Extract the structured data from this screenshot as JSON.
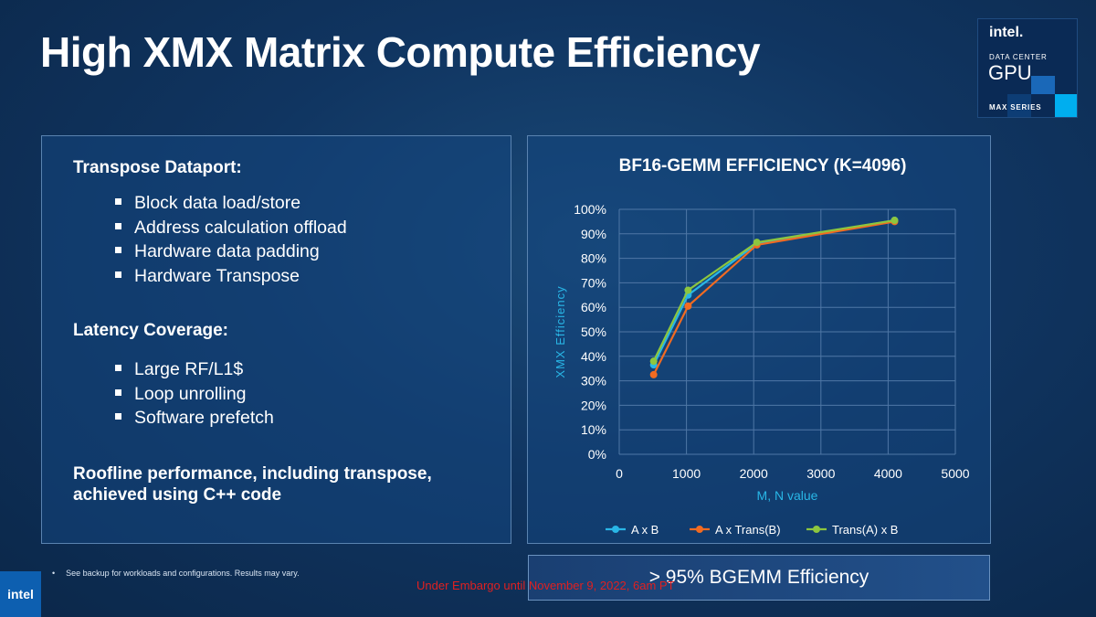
{
  "slide": {
    "title": "High XMX Matrix Compute Efficiency"
  },
  "brand": {
    "logo": "intel.",
    "subtitle": "DATA CENTER",
    "product": "GPU",
    "series": "MAX SERIES"
  },
  "left_panel": {
    "sections": [
      {
        "heading": "Transpose Dataport:",
        "items": [
          "Block data load/store",
          "Address calculation offload",
          "Hardware data padding",
          "Hardware Transpose"
        ]
      },
      {
        "heading": "Latency Coverage:",
        "items": [
          "Large RF/L1$",
          "Loop unrolling",
          "Software prefetch"
        ]
      }
    ],
    "summary": "Roofline performance, including transpose, achieved using C++ code"
  },
  "chart_data": {
    "type": "line",
    "title": "BF16-GEMM EFFICIENCY (K=4096)",
    "xlabel": "M, N value",
    "ylabel": "XMX Efficiency",
    "xlim": [
      0,
      5000
    ],
    "ylim": [
      0,
      1
    ],
    "x_ticks": [
      "0",
      "1000",
      "2000",
      "3000",
      "4000",
      "5000"
    ],
    "y_ticks": [
      "0%",
      "10%",
      "20%",
      "30%",
      "40%",
      "50%",
      "60%",
      "70%",
      "80%",
      "90%",
      "100%"
    ],
    "grid": true,
    "legend_position": "bottom",
    "x": [
      512,
      1024,
      2048,
      4096
    ],
    "series": [
      {
        "name": "A x B",
        "color": "#29b6e6",
        "values": [
          0.365,
          0.65,
          0.86,
          0.955
        ]
      },
      {
        "name": "A x Trans(B)",
        "color": "#f26b21",
        "values": [
          0.325,
          0.605,
          0.855,
          0.95
        ]
      },
      {
        "name": "Trans(A) x B",
        "color": "#8dc63f",
        "values": [
          0.38,
          0.67,
          0.865,
          0.955
        ]
      }
    ]
  },
  "callout": {
    "text": "> 95% BGEMM Efficiency"
  },
  "footer": {
    "footnote": "See backup for workloads and configurations. Results may vary.",
    "embargo": "Under Embargo until November 9, 2022, 6am PT",
    "corner_logo": "intel"
  },
  "colors": {
    "background": "#103561",
    "panel_border": "#5a83b0",
    "axis_label": "#29b6e6",
    "embargo_text": "#e02020"
  }
}
